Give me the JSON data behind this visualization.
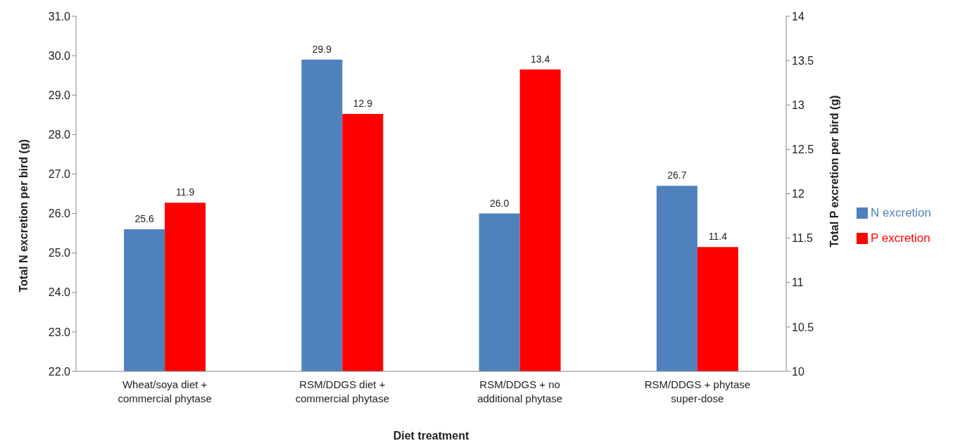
{
  "chart_data": {
    "type": "bar",
    "xlabel": "Diet treatment",
    "ylabel": "Total N excretion per bird (g)",
    "y2label": "Total P excretion per bird (g)",
    "categories": [
      "Wheat/soya diet + commercial phytase",
      "RSM/DDGS diet + commercial phytase",
      "RSM/DDGS + no additional phytase",
      "RSM/DDGS + phytase super-dose"
    ],
    "series": [
      {
        "name": "N excretion",
        "color": "#4f81bd",
        "values": [
          25.6,
          29.9,
          26.0,
          26.7
        ],
        "value_labels": [
          "25.6",
          "29.9",
          "26.0",
          "26.7"
        ]
      },
      {
        "name": "P excretion",
        "color": "#ff0000",
        "axis": "y2",
        "values": [
          11.9,
          12.9,
          13.4,
          11.4
        ],
        "value_labels": [
          "11.9",
          "12.9",
          "13.4",
          "11.4"
        ]
      }
    ],
    "ylim": [
      22,
      31
    ],
    "yticks": [
      {
        "value": 22,
        "label": "22.0"
      },
      {
        "value": 23,
        "label": "23.0"
      },
      {
        "value": 24,
        "label": "24.0"
      },
      {
        "value": 25,
        "label": "25.0"
      },
      {
        "value": 26,
        "label": "26.0"
      },
      {
        "value": 27,
        "label": "27.0"
      },
      {
        "value": 28,
        "label": "28.0"
      },
      {
        "value": 29,
        "label": "29.0"
      },
      {
        "value": 30,
        "label": "30.0"
      },
      {
        "value": 31,
        "label": "31.0"
      }
    ],
    "y2lim": [
      10,
      14
    ],
    "y2ticks": [
      10,
      10.5,
      11,
      11.5,
      12,
      12.5,
      13,
      13.5,
      14
    ],
    "grid": false,
    "legend": "right"
  }
}
